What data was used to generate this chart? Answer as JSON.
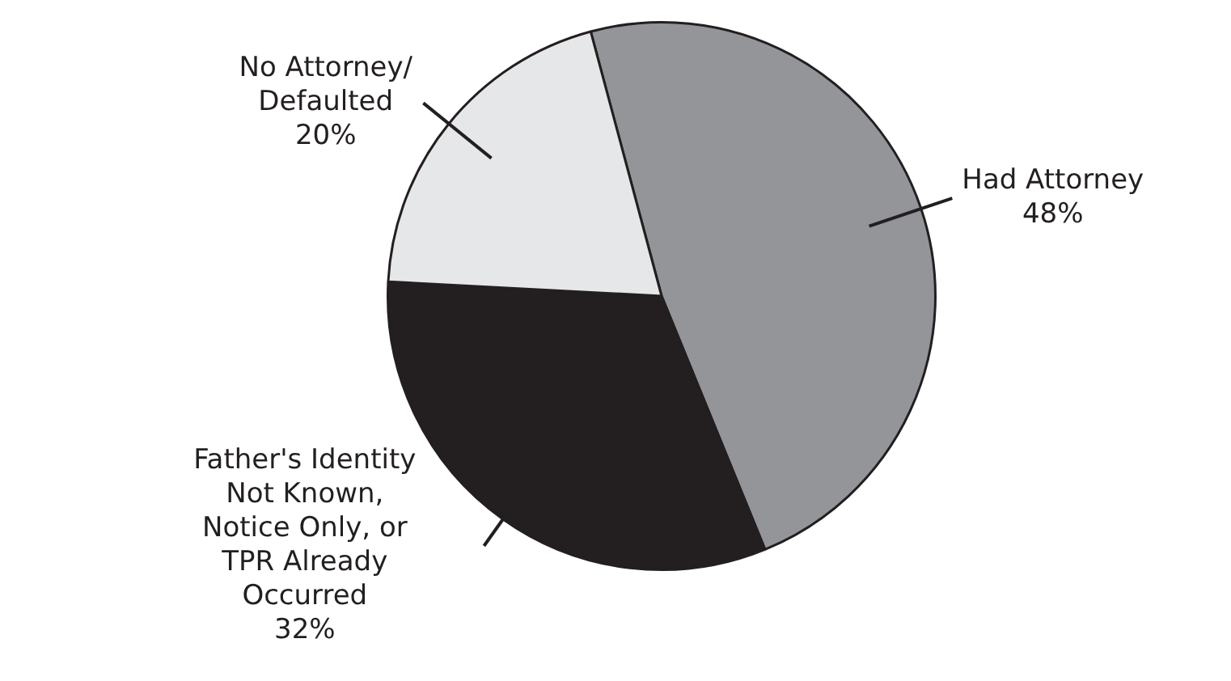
{
  "chart_data": {
    "type": "pie",
    "categories": [
      "Had Attorney",
      "Father's Identity Not Known, Notice Only, or TPR Already Occurred",
      "No Attorney/ Defaulted"
    ],
    "values": [
      48,
      32,
      20
    ],
    "value_labels": [
      "48%",
      "32%",
      "20%"
    ],
    "colors": [
      "#939598",
      "#231f20",
      "#e6e7e8"
    ],
    "legend": false
  }
}
